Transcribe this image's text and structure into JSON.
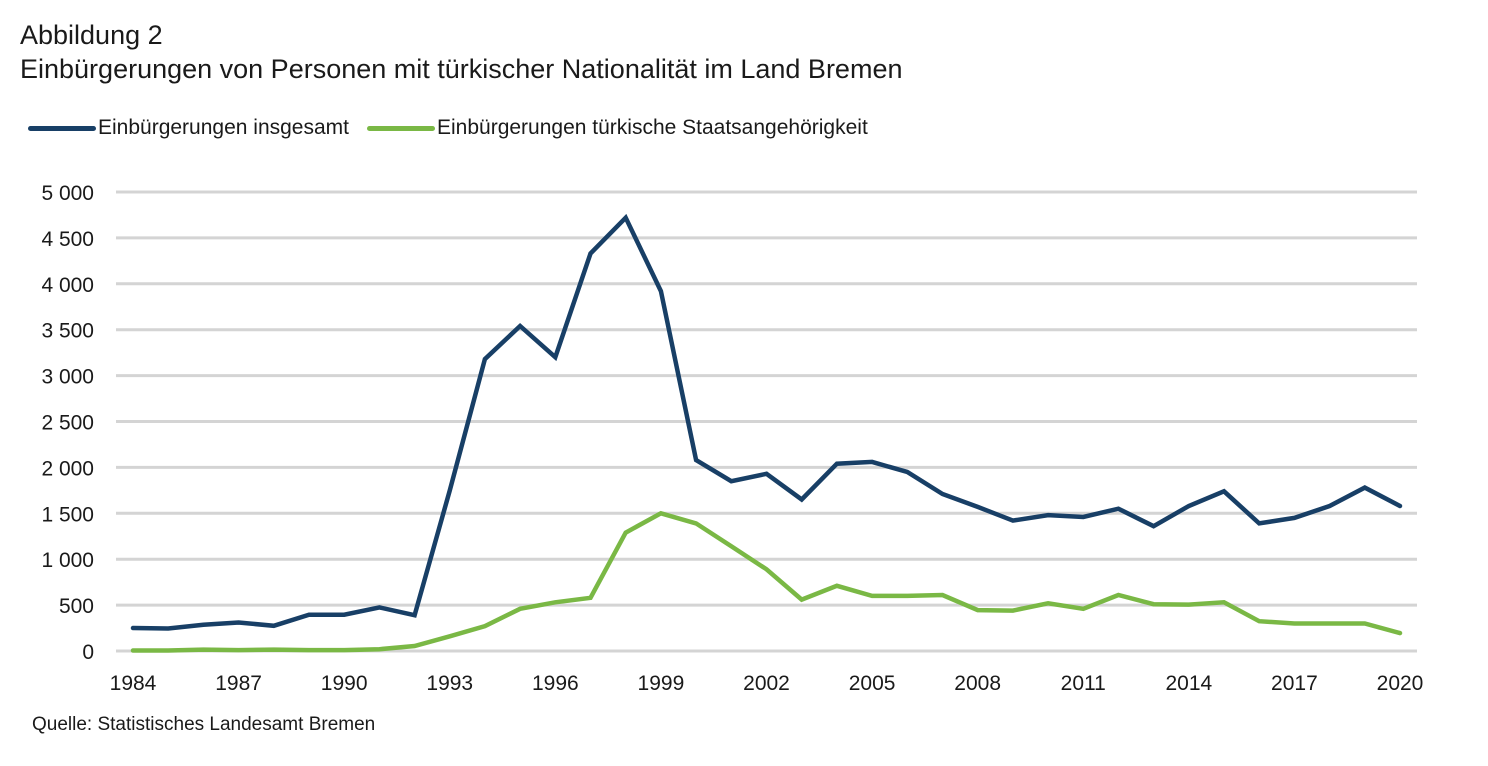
{
  "header": {
    "figure_label": "Abbildung 2",
    "title": "Einbürgerungen von Personen mit türkischer Nationalität im Land Bremen"
  },
  "source": "Quelle: Statistisches Landesamt Bremen",
  "chart_data": {
    "type": "line",
    "title": "Einbürgerungen von Personen mit türkischer Nationalität im Land Bremen",
    "xlabel": "",
    "ylabel": "",
    "ylim": [
      0,
      5000
    ],
    "yticks": [
      0,
      500,
      1000,
      1500,
      2000,
      2500,
      3000,
      3500,
      4000,
      4500,
      5000
    ],
    "ytick_labels": [
      "0",
      "500",
      "1 000",
      "1 500",
      "2 000",
      "2 500",
      "3 000",
      "3 500",
      "4 000",
      "4 500",
      "5 000"
    ],
    "x": [
      1984,
      1985,
      1986,
      1987,
      1988,
      1989,
      1990,
      1991,
      1992,
      1993,
      1994,
      1995,
      1996,
      1997,
      1998,
      1999,
      2000,
      2001,
      2002,
      2003,
      2004,
      2005,
      2006,
      2007,
      2008,
      2009,
      2010,
      2011,
      2012,
      2013,
      2014,
      2015,
      2016,
      2017,
      2018,
      2019,
      2020
    ],
    "xtick_labels": [
      "1984",
      "1987",
      "1990",
      "1993",
      "1996",
      "1999",
      "2002",
      "2005",
      "2008",
      "2011",
      "2014",
      "2017",
      "2020"
    ],
    "grid": "horizontal",
    "legend_position": "top-left",
    "series": [
      {
        "name": "Einbürgerungen insgesamt",
        "color": "#183f66",
        "values": [
          250,
          245,
          285,
          310,
          275,
          395,
          395,
          475,
          390,
          1750,
          3180,
          3540,
          3200,
          4330,
          4720,
          3920,
          2080,
          1850,
          1930,
          1650,
          2040,
          2060,
          1950,
          1710,
          1570,
          1420,
          1480,
          1460,
          1550,
          1360,
          1580,
          1740,
          1390,
          1450,
          1580,
          1780,
          1580
        ]
      },
      {
        "name": "Einbürgerungen türkische Staatsangehörigkeit",
        "color": "#7ab845",
        "values": [
          5,
          5,
          15,
          10,
          15,
          10,
          10,
          20,
          55,
          160,
          270,
          460,
          530,
          580,
          1290,
          1500,
          1390,
          1140,
          890,
          560,
          710,
          600,
          600,
          610,
          445,
          440,
          520,
          460,
          610,
          510,
          505,
          530,
          325,
          300,
          300,
          300,
          195
        ]
      }
    ]
  }
}
